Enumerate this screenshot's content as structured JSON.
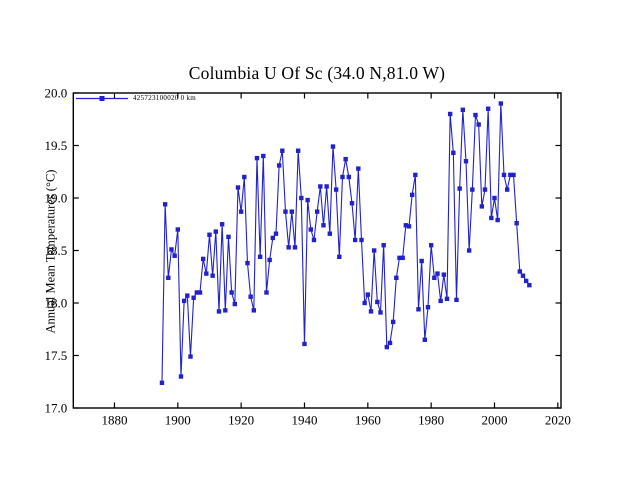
{
  "page": {
    "background": "#ffffff"
  },
  "chart_data": {
    "type": "line",
    "title": "Columbia U Of Sc (34.0 N,81.0 W)",
    "xlabel": "",
    "ylabel": "Annual Mean Temperatures (°C)",
    "xlim": [
      1867,
      2021
    ],
    "ylim": [
      17.0,
      20.0
    ],
    "xticks": [
      1880,
      1900,
      1920,
      1940,
      1960,
      1980,
      2000,
      2020
    ],
    "yticks": [
      17.0,
      17.5,
      18.0,
      18.5,
      19.0,
      19.5,
      20.0
    ],
    "ytick_labels": [
      "17.0",
      "17.5",
      "18.0",
      "18.5",
      "19.0",
      "19.5",
      "20.0"
    ],
    "grid": false,
    "legend": {
      "position": "top-left-inside",
      "label": "425723100020  0 km"
    },
    "line_color": "#2222cc",
    "marker": "square",
    "series": [
      {
        "name": "425723100020  0 km",
        "x": [
          1895,
          1896,
          1897,
          1898,
          1899,
          1900,
          1901,
          1902,
          1903,
          1904,
          1905,
          1906,
          1907,
          1908,
          1909,
          1910,
          1911,
          1912,
          1913,
          1914,
          1915,
          1916,
          1917,
          1918,
          1919,
          1920,
          1921,
          1922,
          1923,
          1924,
          1925,
          1926,
          1927,
          1928,
          1929,
          1930,
          1931,
          1932,
          1933,
          1934,
          1935,
          1936,
          1937,
          1938,
          1939,
          1940,
          1941,
          1942,
          1943,
          1944,
          1945,
          1946,
          1947,
          1948,
          1949,
          1950,
          1951,
          1952,
          1953,
          1954,
          1955,
          1956,
          1957,
          1958,
          1959,
          1960,
          1961,
          1962,
          1963,
          1964,
          1965,
          1966,
          1967,
          1968,
          1969,
          1970,
          1971,
          1972,
          1973,
          1974,
          1975,
          1976,
          1977,
          1978,
          1979,
          1980,
          1981,
          1982,
          1983,
          1984,
          1985,
          1986,
          1987,
          1988,
          1989,
          1990,
          1991,
          1992,
          1993,
          1994,
          1995,
          1996,
          1997,
          1998,
          1999,
          2000,
          2001,
          2002,
          2003,
          2004,
          2005,
          2006,
          2007,
          2008,
          2009,
          2010,
          2011
        ],
        "values": [
          17.24,
          18.94,
          18.24,
          18.51,
          18.45,
          18.7,
          17.3,
          18.02,
          18.07,
          17.49,
          18.05,
          18.1,
          18.1,
          18.42,
          18.28,
          18.65,
          18.26,
          18.68,
          17.92,
          18.75,
          17.93,
          18.63,
          18.1,
          17.99,
          19.1,
          18.87,
          19.2,
          18.38,
          18.06,
          17.93,
          19.38,
          18.44,
          19.4,
          18.1,
          18.41,
          18.62,
          18.66,
          19.31,
          19.45,
          18.87,
          18.53,
          18.87,
          18.53,
          19.45,
          19.0,
          17.61,
          18.98,
          18.7,
          18.6,
          18.87,
          19.11,
          18.74,
          19.11,
          18.66,
          19.49,
          19.08,
          18.44,
          19.2,
          19.37,
          19.2,
          18.95,
          18.6,
          19.28,
          18.6,
          18.0,
          18.08,
          17.92,
          18.5,
          18.01,
          17.91,
          18.55,
          17.58,
          17.62,
          17.82,
          18.24,
          18.43,
          18.43,
          18.74,
          18.73,
          19.03,
          19.22,
          17.94,
          18.4,
          17.65,
          17.96,
          18.55,
          18.24,
          18.28,
          18.02,
          18.27,
          18.04,
          19.8,
          19.43,
          18.03,
          19.09,
          19.84,
          19.35,
          18.5,
          19.08,
          19.79,
          19.7,
          18.92,
          19.08,
          19.85,
          18.81,
          19.0,
          18.79,
          19.9,
          19.22,
          19.08,
          19.22,
          19.22,
          18.76,
          18.3,
          18.26,
          18.21,
          18.17
        ]
      }
    ]
  }
}
